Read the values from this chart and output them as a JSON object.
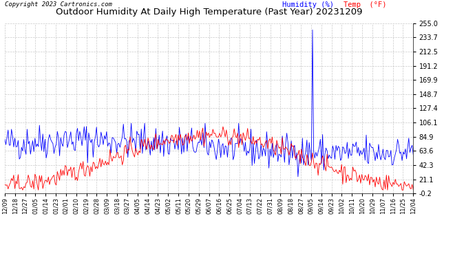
{
  "title": "Outdoor Humidity At Daily High Temperature (Past Year) 20231209",
  "copyright": "Copyright 2023 Cartronics.com",
  "legend_humidity": "Humidity (%)",
  "legend_temp": "Temp  (°F)",
  "color_humidity": "blue",
  "color_temp": "red",
  "bg_color": "#ffffff",
  "plot_bg_color": "#ffffff",
  "grid_color": "#bbbbbb",
  "ymin": -0.2,
  "ymax": 255.0,
  "yticks": [
    255.0,
    233.7,
    212.5,
    191.2,
    169.9,
    148.7,
    127.4,
    106.1,
    84.9,
    63.6,
    42.3,
    21.1,
    -0.2
  ],
  "num_days": 366,
  "seed": 42,
  "spike_day": 275,
  "spike_value": 245,
  "title_fontsize": 9.5,
  "copyright_fontsize": 6.5,
  "legend_fontsize": 7.5,
  "tick_fontsize": 7.0,
  "xtick_fontsize": 6.0
}
